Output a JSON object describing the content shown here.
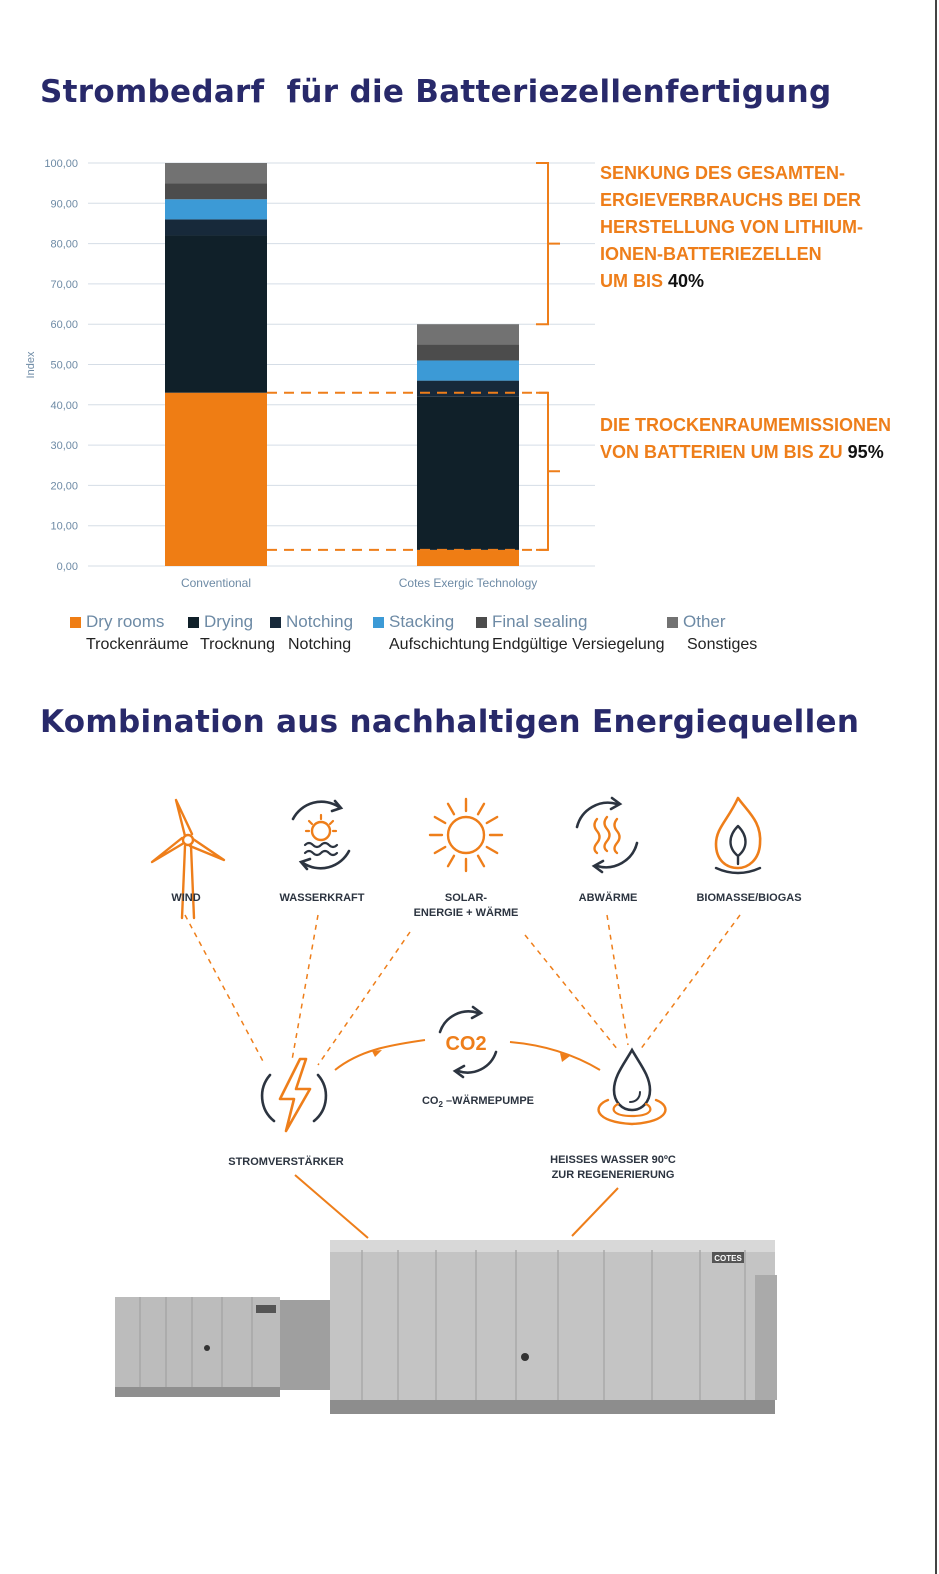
{
  "section1": {
    "title": "Strombedarf  für die Batteriezellenfertigung"
  },
  "chart_data": {
    "type": "bar",
    "stacked": true,
    "categories": [
      "Conventional",
      "Cotes Exergic Technology"
    ],
    "ylabel": "Index",
    "ylim": [
      0,
      100
    ],
    "yticks": [
      "0,00",
      "10,00",
      "20,00",
      "30,00",
      "40,00",
      "50,00",
      "60,00",
      "70,00",
      "80,00",
      "90,00",
      "100,00"
    ],
    "grid": true,
    "series": [
      {
        "name": "Dry rooms",
        "name_de": "Trockenräume",
        "color": "#ef7d14",
        "values": [
          43,
          4
        ]
      },
      {
        "name": "Drying",
        "name_de": "Trocknung",
        "color": "#102029",
        "values": [
          39,
          38
        ]
      },
      {
        "name": "Notching",
        "name_de": "Notching",
        "color": "#17293a",
        "values": [
          4,
          4
        ]
      },
      {
        "name": "Stacking",
        "name_de": "Aufschichtung",
        "color": "#3c9ad6",
        "values": [
          5,
          5
        ]
      },
      {
        "name": "Final sealing",
        "name_de": "Endgültige Versiegelung",
        "color": "#4c4c4c",
        "values": [
          4,
          4
        ]
      },
      {
        "name": "Other",
        "name_de": "Sonstiges",
        "color": "#727272",
        "values": [
          5,
          5
        ]
      }
    ],
    "annotations": [
      {
        "lines": [
          "SENKUNG DES GESAMTEN-",
          "ERGIEVERBRAUCHS BEI DER",
          "HERSTELLUNG VON LITHIUM-",
          "IONEN-BATTERIEZELLEN",
          "UM BIS"
        ],
        "highlight": "40%"
      },
      {
        "lines": [
          "DIE TROCKENRAUMEMISSIONEN",
          "VON BATTERIEN UM BIS ZU"
        ],
        "highlight": "95%"
      }
    ],
    "accent_color": "#ee7e1a"
  },
  "section2": {
    "title": "Kombination aus nachhaltigen Energiequellen",
    "sources": [
      {
        "icon": "wind-turbine-icon",
        "label": [
          "WIND"
        ]
      },
      {
        "icon": "hydro-icon",
        "label": [
          "WASSERKRAFT"
        ]
      },
      {
        "icon": "sun-icon",
        "label": [
          "SOLAR-",
          "ENERGIE + WÄRME"
        ]
      },
      {
        "icon": "waste-heat-icon",
        "label": [
          "ABWÄRME"
        ]
      },
      {
        "icon": "biomass-flame-icon",
        "label": [
          "BIOMASSE/BIOGAS"
        ]
      }
    ],
    "heatpump": {
      "icon_text": "CO2",
      "label_a": "CO",
      "label_sub": "2",
      "label_b": " –WÄRMEPUMPE"
    },
    "booster": {
      "icon": "lightning-icon",
      "label": "STROMVERSTÄRKER"
    },
    "hotwater": {
      "icon": "water-drop-icon",
      "label": [
        "HEISSES WASSER 90ºC",
        "ZUR REGENERIERUNG"
      ]
    },
    "unit_brand": "COTES",
    "colors": {
      "orange": "#ee7e1a",
      "dark": "#2c3440",
      "navy": "#28296a"
    }
  }
}
